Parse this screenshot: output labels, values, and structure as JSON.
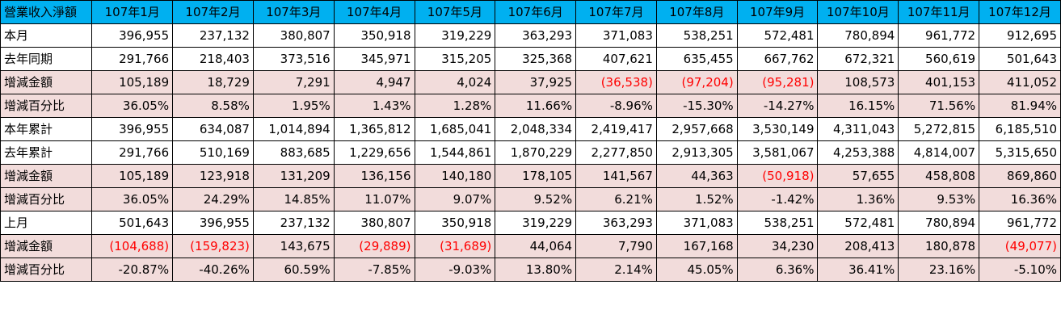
{
  "table": {
    "headers": [
      "營業收入淨額",
      "107年1月",
      "107年2月",
      "107年3月",
      "107年4月",
      "107年5月",
      "107年6月",
      "107年7月",
      "107年8月",
      "107年9月",
      "107年10月",
      "107年11月",
      "107年12月"
    ],
    "rows": [
      {
        "label": "本月",
        "highlight": false,
        "values": [
          "396,955",
          "237,132",
          "380,807",
          "350,918",
          "319,229",
          "363,293",
          "371,083",
          "538,251",
          "572,481",
          "780,894",
          "961,772",
          "912,695"
        ]
      },
      {
        "label": "去年同期",
        "highlight": false,
        "values": [
          "291,766",
          "218,403",
          "373,516",
          "345,971",
          "315,205",
          "325,368",
          "407,621",
          "635,455",
          "667,762",
          "672,321",
          "560,619",
          "501,643"
        ]
      },
      {
        "label": "增減金額",
        "highlight": true,
        "values": [
          "105,189",
          "18,729",
          "7,291",
          "4,947",
          "4,024",
          "37,925",
          "(36,538)",
          "(97,204)",
          "(95,281)",
          "108,573",
          "401,153",
          "411,052"
        ]
      },
      {
        "label": "增減百分比",
        "highlight": true,
        "values": [
          "36.05%",
          "8.58%",
          "1.95%",
          "1.43%",
          "1.28%",
          "11.66%",
          "-8.96%",
          "-15.30%",
          "-14.27%",
          "16.15%",
          "71.56%",
          "81.94%"
        ]
      },
      {
        "label": "本年累計",
        "highlight": false,
        "values": [
          "396,955",
          "634,087",
          "1,014,894",
          "1,365,812",
          "1,685,041",
          "2,048,334",
          "2,419,417",
          "2,957,668",
          "3,530,149",
          "4,311,043",
          "5,272,815",
          "6,185,510"
        ]
      },
      {
        "label": "去年累計",
        "highlight": false,
        "values": [
          "291,766",
          "510,169",
          "883,685",
          "1,229,656",
          "1,544,861",
          "1,870,229",
          "2,277,850",
          "2,913,305",
          "3,581,067",
          "4,253,388",
          "4,814,007",
          "5,315,650"
        ]
      },
      {
        "label": "增減金額",
        "highlight": true,
        "values": [
          "105,189",
          "123,918",
          "131,209",
          "136,156",
          "140,180",
          "178,105",
          "141,567",
          "44,363",
          "(50,918)",
          "57,655",
          "458,808",
          "869,860"
        ]
      },
      {
        "label": "增減百分比",
        "highlight": true,
        "values": [
          "36.05%",
          "24.29%",
          "14.85%",
          "11.07%",
          "9.07%",
          "9.52%",
          "6.21%",
          "1.52%",
          "-1.42%",
          "1.36%",
          "9.53%",
          "16.36%"
        ]
      },
      {
        "label": "上月",
        "highlight": false,
        "values": [
          "501,643",
          "396,955",
          "237,132",
          "380,807",
          "350,918",
          "319,229",
          "363,293",
          "371,083",
          "538,251",
          "572,481",
          "780,894",
          "961,772"
        ]
      },
      {
        "label": "增減金額",
        "highlight": true,
        "values": [
          "(104,688)",
          "(159,823)",
          "143,675",
          "(29,889)",
          "(31,689)",
          "44,064",
          "7,790",
          "167,168",
          "34,230",
          "208,413",
          "180,878",
          "(49,077)"
        ]
      },
      {
        "label": "增減百分比",
        "highlight": true,
        "values": [
          "-20.87%",
          "-40.26%",
          "60.59%",
          "-7.85%",
          "-9.03%",
          "13.80%",
          "2.14%",
          "45.05%",
          "6.36%",
          "36.41%",
          "23.16%",
          "-5.10%"
        ]
      }
    ]
  },
  "colors": {
    "header_bg": "#00b0f0",
    "highlight_row_bg": "#f2dcdb",
    "negative_text": "#ff0000"
  }
}
